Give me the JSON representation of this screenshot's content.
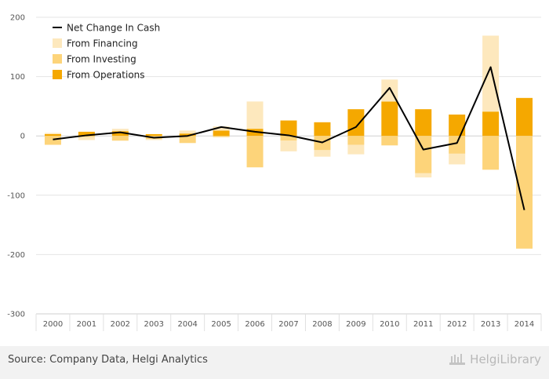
{
  "chart_data": {
    "type": "bar",
    "stacked": true,
    "categories": [
      "2000",
      "2001",
      "2002",
      "2003",
      "2004",
      "2005",
      "2006",
      "2007",
      "2008",
      "2009",
      "2010",
      "2011",
      "2012",
      "2013",
      "2014"
    ],
    "series": [
      {
        "name": "From Operations",
        "kind": "bar",
        "color": "#f5a800",
        "values": [
          3,
          7,
          8,
          3,
          4,
          9,
          12,
          26,
          23,
          45,
          58,
          45,
          36,
          41,
          64
        ]
      },
      {
        "name": "From Investing",
        "kind": "bar",
        "color": "#fdd47a",
        "values": [
          -15,
          -2,
          -8,
          -5,
          -12,
          -2,
          -53,
          -8,
          -24,
          -15,
          -16,
          -63,
          -30,
          -57,
          -190
        ]
      },
      {
        "name": "From Financing",
        "kind": "bar",
        "color": "#fde8bd",
        "values": [
          2,
          -5,
          4,
          -2,
          5,
          7,
          46,
          -18,
          -11,
          -16,
          37,
          -7,
          -18,
          128,
          0
        ]
      },
      {
        "name": "Net Change In Cash",
        "kind": "line",
        "color": "#000000",
        "values": [
          -6,
          1,
          6,
          -3,
          0,
          15,
          7,
          1,
          -11,
          15,
          81,
          -23,
          -12,
          116,
          -125
        ]
      }
    ],
    "ylim": [
      -300,
      200
    ],
    "yticks": [
      200,
      100,
      0,
      -100,
      -200,
      -300
    ],
    "grid": true,
    "legend_position": "top-left"
  },
  "footer": {
    "source": "Source: Company Data, Helgi Analytics",
    "brand": "HelgiLibrary"
  }
}
